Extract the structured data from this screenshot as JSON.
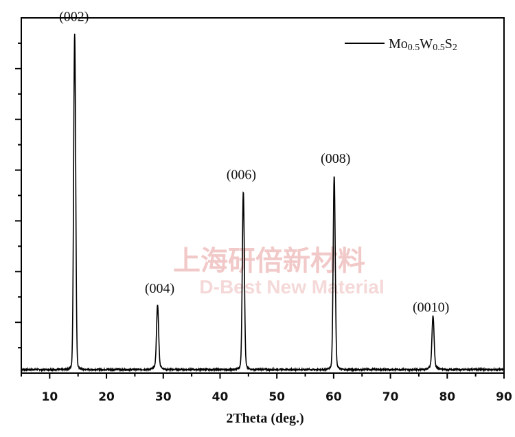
{
  "watermark": {
    "line1": "上海研倍新材料",
    "line2": "D-Best New Material"
  },
  "chart_data": {
    "type": "line",
    "title": "",
    "xlabel": "2Theta (deg.)",
    "ylabel": "",
    "xlim": [
      5,
      90
    ],
    "ylim": [
      0,
      1.0
    ],
    "x_ticks": [
      10,
      20,
      30,
      40,
      50,
      60,
      70,
      80,
      90
    ],
    "y_ticks_labeled": false,
    "grid": false,
    "legend_position": "top-right",
    "line_color": "#000000",
    "series": [
      {
        "name": "Mo0.5W0.5S2",
        "name_parts": {
          "element1": "Mo",
          "sub1": "0.5",
          "element2": "W",
          "sub2": "0.5",
          "element3": "S",
          "sub3": "2"
        },
        "baseline": 0.01,
        "peaks": [
          {
            "x": 14.4,
            "y": 0.945,
            "label": "(002)"
          },
          {
            "x": 29.0,
            "y": 0.18,
            "label": "(004)"
          },
          {
            "x": 44.1,
            "y": 0.5,
            "label": "(006)"
          },
          {
            "x": 60.1,
            "y": 0.545,
            "label": "(008)"
          },
          {
            "x": 77.5,
            "y": 0.15,
            "label": "(0010)"
          }
        ]
      }
    ]
  }
}
